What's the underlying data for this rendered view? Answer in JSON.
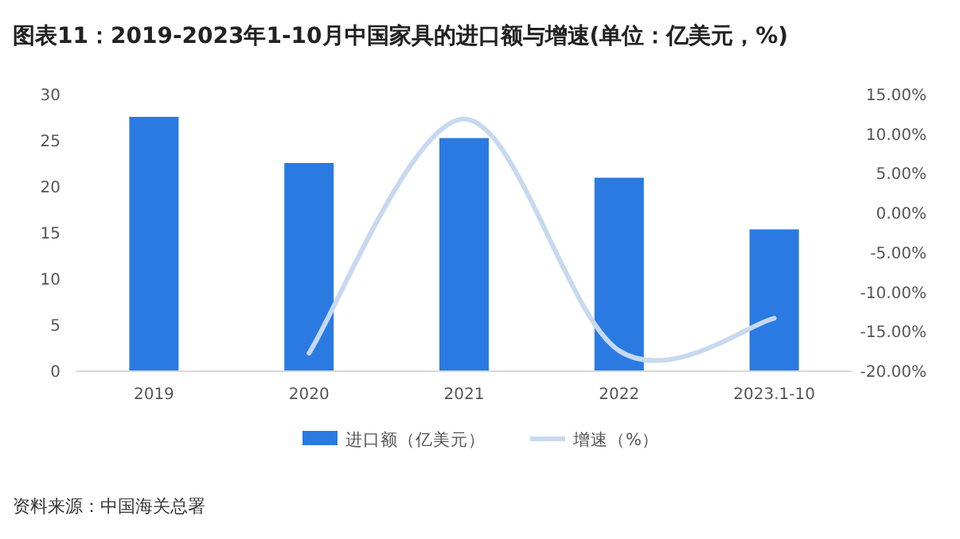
{
  "chart_data": {
    "type": "bar",
    "title": "图表11：2019-2023年1-10月中国家具的进口额与增速(单位：亿美元，%)",
    "categories": [
      "2019",
      "2020",
      "2021",
      "2022",
      "2023.1-10"
    ],
    "series": [
      {
        "name": "进口额（亿美元）",
        "color": "#2a7ae2",
        "values": [
          27.5,
          22.5,
          25.2,
          20.9,
          15.3
        ]
      },
      {
        "name": "增速（%）",
        "type": "line",
        "color": "#c6d9f0",
        "axis": "y2",
        "values": [
          null,
          -17.8,
          11.8,
          -17.5,
          -13.4
        ]
      }
    ],
    "ylim": [
      0,
      30
    ],
    "yticks": [
      0,
      5,
      10,
      15,
      20,
      25,
      30
    ],
    "y2lim": [
      -20,
      15
    ],
    "y2ticks": [
      {
        "value": -20,
        "label": "-20.00%"
      },
      {
        "value": -15,
        "label": "-15.00%"
      },
      {
        "value": -10,
        "label": "-10.00%"
      },
      {
        "value": -5,
        "label": "-5.00%"
      },
      {
        "value": 0,
        "label": "0.00%"
      },
      {
        "value": 5,
        "label": "5.00%"
      },
      {
        "value": 10,
        "label": "10.00%"
      },
      {
        "value": 15,
        "label": "15.00%"
      }
    ],
    "legend": "bottom",
    "annotations": [
      "资料来源：中国海关总署"
    ]
  }
}
